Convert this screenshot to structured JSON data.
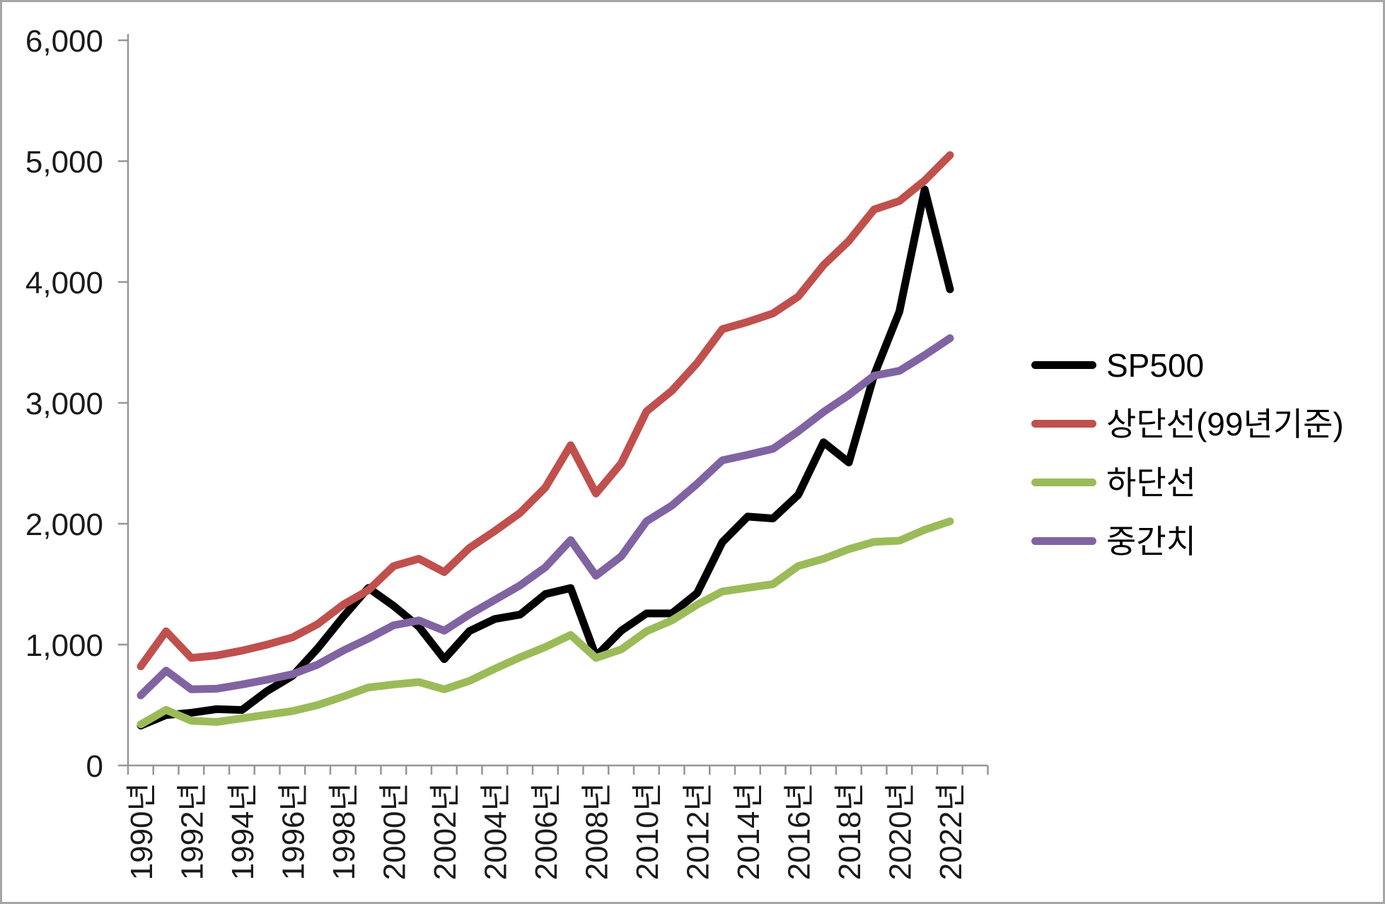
{
  "chart_data": {
    "type": "line",
    "x": [
      1990,
      1991,
      1992,
      1993,
      1994,
      1995,
      1996,
      1997,
      1998,
      1999,
      2000,
      2001,
      2002,
      2003,
      2004,
      2005,
      2006,
      2007,
      2008,
      2009,
      2010,
      2011,
      2012,
      2013,
      2014,
      2015,
      2016,
      2017,
      2018,
      2019,
      2020,
      2021,
      2022
    ],
    "x_tick_labels": [
      "1990년",
      "1992년",
      "1994년",
      "1996년",
      "1998년",
      "2000년",
      "2002년",
      "2004년",
      "2006년",
      "2008년",
      "2010년",
      "2012년",
      "2014년",
      "2016년",
      "2018년",
      "2020년",
      "2022년"
    ],
    "y_ticks": [
      0,
      1000,
      2000,
      3000,
      4000,
      5000,
      6000
    ],
    "y_tick_labels": [
      "0",
      "1,000",
      "2,000",
      "3,000",
      "4,000",
      "5,000",
      "6,000"
    ],
    "ylim": [
      0,
      6000
    ],
    "grid": false,
    "legend_position": "right",
    "axis_color": "#969696",
    "series": [
      {
        "name": "SP500",
        "color": "#000000",
        "values": [
          330,
          417,
          436,
          466,
          459,
          616,
          741,
          970,
          1229,
          1469,
          1320,
          1148,
          880,
          1112,
          1212,
          1248,
          1418,
          1468,
          903,
          1115,
          1258,
          1258,
          1426,
          1848,
          2059,
          2044,
          2239,
          2674,
          2507,
          3231,
          3756,
          4766,
          3940
        ]
      },
      {
        "name": "상단선(99년기준)",
        "color": "#C0504D",
        "values": [
          820,
          1110,
          890,
          910,
          950,
          1000,
          1060,
          1170,
          1330,
          1450,
          1650,
          1710,
          1600,
          1800,
          1940,
          2090,
          2300,
          2650,
          2250,
          2500,
          2930,
          3100,
          3330,
          3610,
          3670,
          3740,
          3880,
          4140,
          4340,
          4600,
          4670,
          4840,
          5050
        ]
      },
      {
        "name": "하단선",
        "color": "#9BBB59",
        "values": [
          340,
          460,
          370,
          360,
          390,
          420,
          450,
          500,
          570,
          645,
          670,
          690,
          630,
          700,
          800,
          895,
          980,
          1080,
          890,
          960,
          1110,
          1200,
          1330,
          1440,
          1470,
          1500,
          1650,
          1710,
          1790,
          1850,
          1860,
          1950,
          2020
        ]
      },
      {
        "name": "중간치",
        "color": "#8064A2",
        "values": [
          580,
          785,
          630,
          635,
          670,
          710,
          755,
          835,
          950,
          1050,
          1160,
          1200,
          1115,
          1250,
          1370,
          1490,
          1640,
          1865,
          1570,
          1730,
          2020,
          2150,
          2330,
          2525,
          2570,
          2620,
          2765,
          2925,
          3065,
          3225,
          3265,
          3395,
          3535
        ]
      }
    ]
  }
}
